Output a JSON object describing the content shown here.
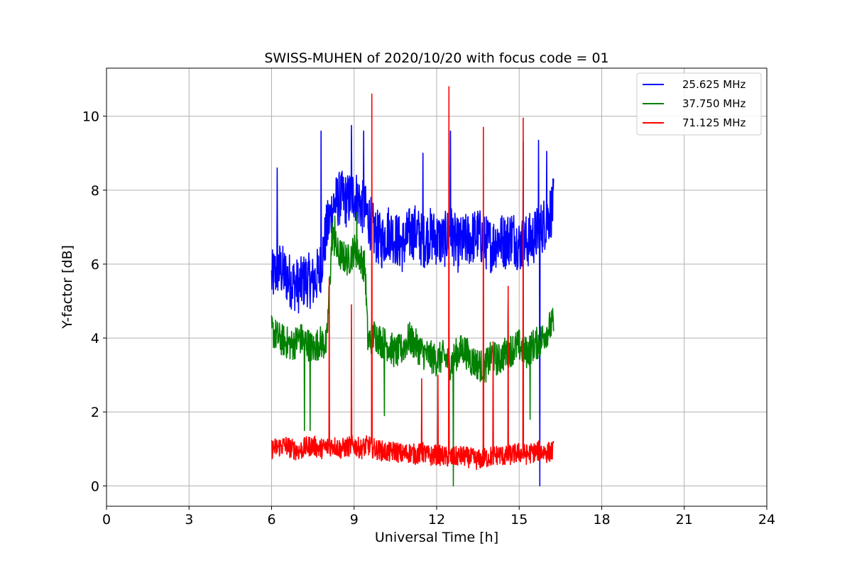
{
  "chart_data": {
    "type": "line",
    "title": "SWISS-MUHEN of 2020/10/20 with focus code = 01",
    "xlabel": "Universal Time [h]",
    "ylabel": "Y-factor [dB]",
    "xlim": [
      0,
      24
    ],
    "ylim": [
      -0.55,
      11.3
    ],
    "xticks": [
      0,
      3,
      6,
      9,
      12,
      15,
      18,
      21,
      24
    ],
    "yticks": [
      0,
      2,
      4,
      6,
      8,
      10
    ],
    "grid": true,
    "legend_position": "top-right",
    "series": [
      {
        "name": "25.625 MHz",
        "color": "#0000ff",
        "x": [
          6.0,
          6.25,
          6.5,
          6.75,
          7.0,
          7.25,
          7.5,
          7.75,
          8.0,
          8.25,
          8.5,
          8.75,
          9.0,
          9.25,
          9.5,
          9.75,
          10.0,
          10.25,
          10.5,
          10.75,
          11.0,
          11.25,
          11.5,
          11.75,
          12.0,
          12.25,
          12.5,
          12.75,
          13.0,
          13.25,
          13.5,
          13.75,
          14.0,
          14.25,
          14.5,
          14.75,
          15.0,
          15.25,
          15.5,
          15.75,
          16.0,
          16.25
        ],
        "y": [
          5.6,
          5.9,
          5.7,
          5.5,
          5.4,
          5.6,
          5.5,
          5.8,
          6.9,
          7.6,
          7.8,
          7.7,
          7.9,
          7.6,
          7.3,
          6.8,
          6.6,
          6.9,
          6.7,
          6.5,
          6.8,
          6.9,
          6.6,
          6.8,
          6.7,
          6.6,
          6.9,
          6.5,
          6.6,
          6.7,
          6.8,
          6.6,
          6.5,
          6.7,
          6.6,
          6.8,
          6.5,
          6.6,
          6.7,
          6.9,
          7.2,
          7.6
        ],
        "spikes": [
          [
            6.2,
            8.6
          ],
          [
            7.8,
            9.6
          ],
          [
            8.9,
            9.75
          ],
          [
            9.35,
            9.6
          ],
          [
            11.5,
            9.0
          ],
          [
            12.5,
            9.6
          ],
          [
            15.15,
            9.3
          ],
          [
            15.7,
            9.35
          ],
          [
            16.0,
            9.05
          ],
          [
            15.75,
            0.0
          ]
        ]
      },
      {
        "name": "37.750 MHz",
        "color": "#008000",
        "x": [
          6.0,
          6.25,
          6.5,
          6.75,
          7.0,
          7.25,
          7.5,
          7.75,
          8.0,
          8.2,
          8.4,
          8.6,
          8.8,
          9.0,
          9.2,
          9.4,
          9.5,
          9.75,
          10.0,
          10.25,
          10.5,
          10.75,
          11.0,
          11.25,
          11.5,
          11.75,
          12.0,
          12.25,
          12.5,
          12.75,
          13.0,
          13.25,
          13.5,
          13.75,
          14.0,
          14.25,
          14.5,
          14.75,
          15.0,
          15.25,
          15.5,
          15.75,
          16.0,
          16.25
        ],
        "y": [
          4.2,
          4.0,
          3.9,
          3.8,
          4.0,
          3.9,
          3.7,
          3.9,
          3.8,
          6.8,
          6.3,
          6.2,
          6.1,
          6.4,
          6.2,
          5.9,
          3.9,
          4.1,
          3.9,
          3.8,
          3.6,
          3.7,
          4.0,
          3.8,
          3.6,
          3.5,
          3.4,
          3.5,
          3.3,
          3.6,
          3.7,
          3.4,
          3.3,
          3.2,
          3.5,
          3.4,
          3.6,
          3.7,
          3.8,
          3.6,
          3.8,
          3.9,
          4.2,
          4.4
        ],
        "spikes": [
          [
            7.2,
            1.5
          ],
          [
            7.4,
            1.5
          ],
          [
            8.3,
            7.3
          ],
          [
            9.1,
            7.4
          ],
          [
            10.1,
            1.9
          ],
          [
            12.6,
            0.0
          ],
          [
            14.6,
            5.0
          ],
          [
            15.4,
            1.8
          ]
        ]
      },
      {
        "name": "71.125 MHz",
        "color": "#ff0000",
        "x": [
          6.0,
          6.25,
          6.5,
          6.75,
          7.0,
          7.25,
          7.5,
          7.75,
          8.0,
          8.25,
          8.5,
          8.75,
          9.0,
          9.25,
          9.5,
          9.75,
          10.0,
          10.25,
          10.5,
          10.75,
          11.0,
          11.25,
          11.5,
          11.75,
          12.0,
          12.25,
          12.5,
          12.75,
          13.0,
          13.25,
          13.5,
          13.75,
          14.0,
          14.25,
          14.5,
          14.75,
          15.0,
          15.25,
          15.5,
          15.75,
          16.0,
          16.25
        ],
        "y": [
          1.0,
          1.05,
          1.1,
          1.0,
          0.95,
          1.05,
          1.1,
          1.0,
          1.05,
          1.1,
          1.0,
          1.05,
          1.1,
          1.0,
          1.1,
          1.0,
          0.95,
          0.9,
          0.95,
          0.85,
          0.9,
          0.85,
          0.9,
          0.8,
          0.85,
          0.8,
          0.75,
          0.8,
          0.8,
          0.75,
          0.7,
          0.75,
          0.8,
          0.85,
          0.8,
          0.85,
          0.9,
          0.85,
          0.9,
          0.95,
          0.9,
          0.95
        ],
        "spikes": [
          [
            8.1,
            5.6
          ],
          [
            8.9,
            4.9
          ],
          [
            9.65,
            10.6
          ],
          [
            11.45,
            2.9
          ],
          [
            12.05,
            3.0
          ],
          [
            12.45,
            10.8
          ],
          [
            13.7,
            9.7
          ],
          [
            14.05,
            3.9
          ],
          [
            14.6,
            5.4
          ],
          [
            15.15,
            9.95
          ]
        ]
      }
    ]
  }
}
